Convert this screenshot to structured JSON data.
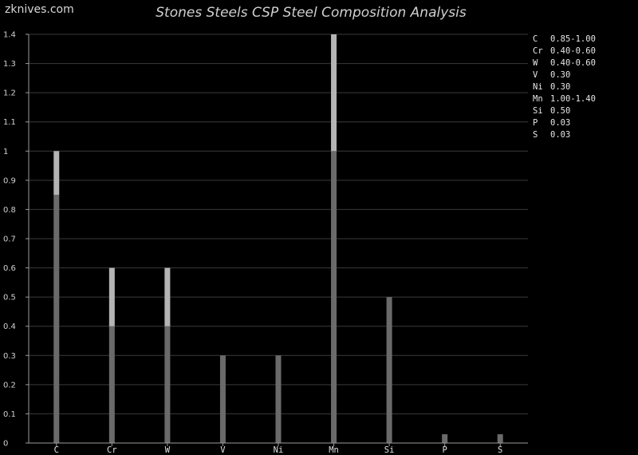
{
  "watermark": "zknives.com",
  "chart_data": {
    "type": "bar",
    "title": "Stones Steels CSP Steel Composition Analysis",
    "xlabel": "",
    "ylabel": "",
    "ylim": [
      0,
      1.4
    ],
    "yticks": [
      "0",
      "0.1",
      "0.2",
      "0.3",
      "0.4",
      "0.5",
      "0.6",
      "0.7",
      "0.8",
      "0.9",
      "1",
      "1.1",
      "1.2",
      "1.3",
      "1.4"
    ],
    "grid": true,
    "legend_position": "top-right",
    "categories": [
      "C",
      "Cr",
      "W",
      "V",
      "Ni",
      "Mn",
      "Si",
      "P",
      "S"
    ],
    "min_values": [
      0.85,
      0.4,
      0.4,
      0.3,
      0.3,
      1.0,
      0.5,
      0.03,
      0.03
    ],
    "max_values": [
      1.0,
      0.6,
      0.6,
      0.3,
      0.3,
      1.4,
      0.5,
      0.03,
      0.03
    ],
    "legend": [
      {
        "symbol": "C",
        "value": "0.85-1.00"
      },
      {
        "symbol": "Cr",
        "value": "0.40-0.60"
      },
      {
        "symbol": "W",
        "value": "0.40-0.60"
      },
      {
        "symbol": "V",
        "value": "0.30"
      },
      {
        "symbol": "Ni",
        "value": "0.30"
      },
      {
        "symbol": "Mn",
        "value": "1.00-1.40"
      },
      {
        "symbol": "Si",
        "value": "0.50"
      },
      {
        "symbol": "P",
        "value": "0.03"
      },
      {
        "symbol": "S",
        "value": "0.03"
      }
    ],
    "colors": {
      "base_bar": "#6a6a6a",
      "range_bar": "#b4b4b4",
      "grid": "#3a3a3a",
      "axis": "#9a9a9a"
    }
  }
}
